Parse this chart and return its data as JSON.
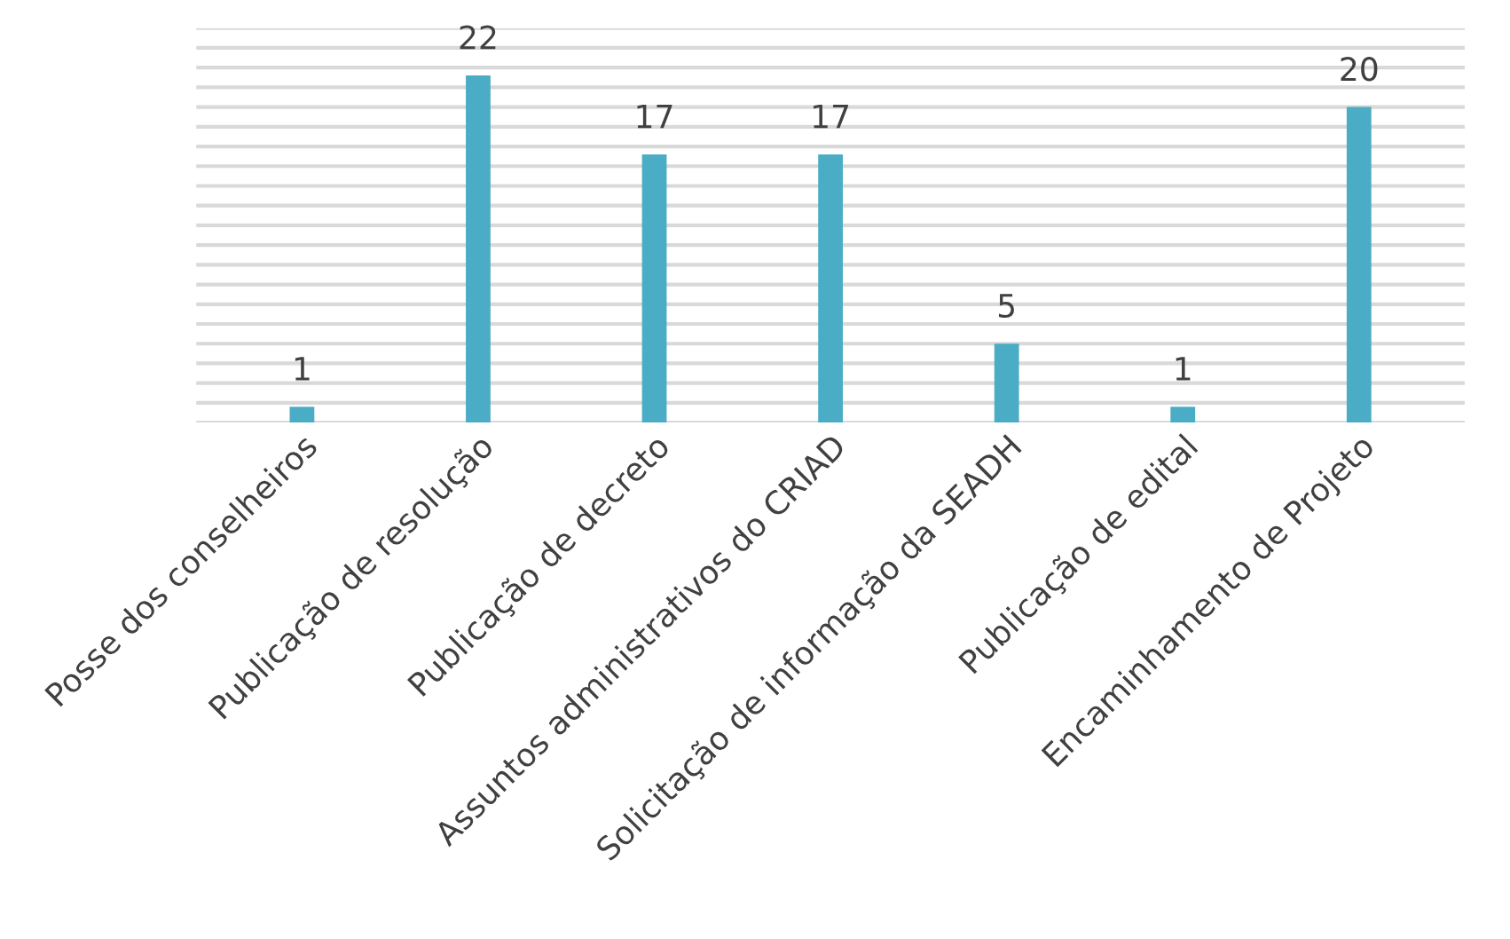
{
  "chart_data": {
    "type": "bar",
    "categories": [
      "Posse dos conselheiros",
      "Publicação de resolução",
      "Publicação de decreto",
      "Assuntos administrativos do CRIAD",
      "Solicitação de informação da SEADH",
      "Publicação de edital",
      "Encaminhamento de Projeto"
    ],
    "values": [
      1,
      22,
      17,
      17,
      5,
      1,
      20
    ],
    "color": "#4bacc6",
    "data_labels": true,
    "ylim": [
      0,
      25
    ],
    "yticks": [
      {
        "value": 0,
        "label": null
      },
      {
        "value": 1.25,
        "label": null
      },
      {
        "value": 2.5,
        "label": null
      },
      {
        "value": 3.75,
        "label": null
      },
      {
        "value": 5,
        "label": null
      },
      {
        "value": 6.25,
        "label": null
      },
      {
        "value": 7.5,
        "label": null
      },
      {
        "value": 8.75,
        "label": null
      },
      {
        "value": 10,
        "label": null
      },
      {
        "value": 11.25,
        "label": null
      },
      {
        "value": 12.5,
        "label": null
      },
      {
        "value": 13.75,
        "label": null
      },
      {
        "value": 15,
        "label": null
      },
      {
        "value": 16.25,
        "label": null
      },
      {
        "value": 17.5,
        "label": null
      },
      {
        "value": 18.75,
        "label": null
      },
      {
        "value": 20,
        "label": null
      },
      {
        "value": 21.25,
        "label": null
      },
      {
        "value": 22.5,
        "label": null
      },
      {
        "value": 23.75,
        "label": null
      },
      {
        "value": 25,
        "label": null
      }
    ],
    "grid": "y",
    "tick_labels": "x"
  }
}
